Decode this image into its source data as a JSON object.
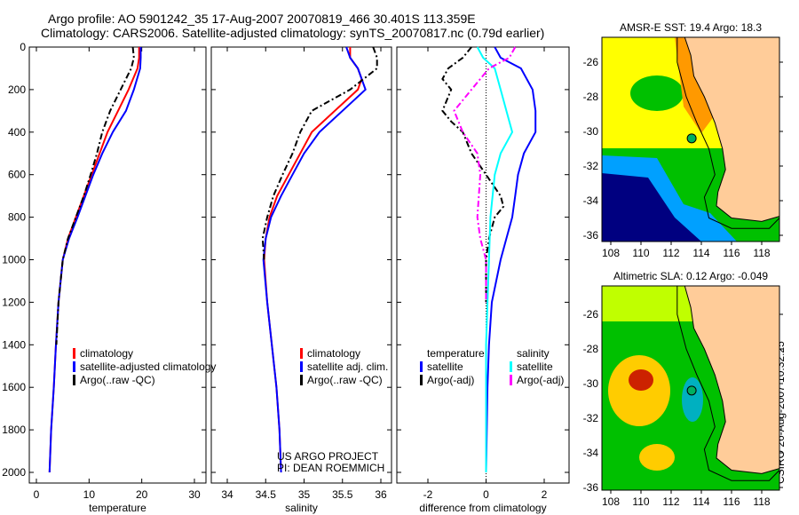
{
  "title_line1": "Argo profile: AO 5901242_35 17-Aug-2007 20070819_466 30.401S 113.359E",
  "title_line2": "Climatology: CARS2006. Satellite-adjusted climatology: synTS_20070817.nc (0.79d earlier)",
  "side_label": "CSIRO 26-Aug-2007 10:32:25",
  "chart_data": [
    {
      "type": "line",
      "xlabel": "temperature",
      "ylabel": "depth",
      "xlim": [
        -1,
        31
      ],
      "ylim": [
        2000,
        0
      ],
      "xticks": [
        0,
        10,
        20,
        30
      ],
      "yticks": [
        0,
        200,
        400,
        600,
        800,
        1000,
        1200,
        1400,
        1600,
        1800,
        2000
      ],
      "legend": [
        "climatology",
        "satellite-adjusted climatology",
        "Argo(..raw -QC)"
      ],
      "series": [
        {
          "name": "climatology",
          "color": "#ff0000",
          "dash": false,
          "depth": [
            0,
            50,
            100,
            200,
            300,
            400,
            500,
            600,
            700,
            800,
            900,
            1000,
            1200,
            1400,
            1600,
            1800,
            2000
          ],
          "values": [
            19.5,
            19.5,
            19.2,
            17.5,
            15.5,
            13.5,
            12,
            10.5,
            9,
            7.5,
            6,
            5,
            4.2,
            3.7,
            3.3,
            2.8,
            2.5
          ]
        },
        {
          "name": "satellite-adjusted climatology",
          "color": "#0000ff",
          "dash": false,
          "depth": [
            0,
            50,
            100,
            200,
            300,
            400,
            500,
            600,
            700,
            800,
            900,
            1000,
            1200,
            1400,
            1600,
            1800,
            2000
          ],
          "values": [
            19.8,
            19.8,
            19.7,
            18.5,
            17,
            14.5,
            12.5,
            10.8,
            9.3,
            7.8,
            6.2,
            5,
            4.2,
            3.7,
            3.3,
            2.8,
            2.5
          ]
        },
        {
          "name": "Argo(..raw -QC)",
          "color": "#000000",
          "dash": true,
          "depth": [
            0,
            50,
            100,
            200,
            300,
            400,
            500,
            600,
            700,
            800,
            900,
            1000,
            1200,
            1400
          ],
          "values": [
            18.3,
            18.5,
            18,
            16,
            14,
            12.5,
            11.5,
            10.3,
            9,
            7.5,
            6,
            5,
            4.2,
            3.8
          ]
        }
      ]
    },
    {
      "type": "line",
      "xlabel": "salinity",
      "ylabel": "depth",
      "xlim": [
        33.8,
        36.1
      ],
      "ylim": [
        2000,
        0
      ],
      "xticks": [
        34,
        34.5,
        35,
        35.5,
        36
      ],
      "yticks": [],
      "legend": [
        "climatology",
        "satellite adj. clim.",
        "Argo(..raw -QC)"
      ],
      "annotation": [
        "US ARGO PROJECT",
        "PI: DEAN ROEMMICH"
      ],
      "series": [
        {
          "name": "climatology",
          "color": "#ff0000",
          "dash": false,
          "depth": [
            0,
            50,
            100,
            150,
            200,
            300,
            400,
            500,
            600,
            700,
            800,
            900,
            1000,
            1200,
            1400,
            1600,
            1800,
            2000
          ],
          "values": [
            35.6,
            35.6,
            35.7,
            35.75,
            35.7,
            35.4,
            35.1,
            34.95,
            34.8,
            34.65,
            34.55,
            34.5,
            34.48,
            34.52,
            34.58,
            34.64,
            34.68,
            34.7
          ]
        },
        {
          "name": "satellite adj. clim.",
          "color": "#0000ff",
          "dash": false,
          "depth": [
            0,
            50,
            100,
            200,
            300,
            400,
            500,
            600,
            700,
            800,
            900,
            1000,
            1200,
            1400,
            1600,
            1800,
            2000
          ],
          "values": [
            35.55,
            35.6,
            35.7,
            35.8,
            35.5,
            35.2,
            35.0,
            34.85,
            34.7,
            34.57,
            34.5,
            34.47,
            34.52,
            34.58,
            34.64,
            34.68,
            34.7
          ]
        },
        {
          "name": "Argo(..raw -QC)",
          "color": "#000000",
          "dash": true,
          "depth": [
            0,
            50,
            100,
            200,
            300,
            400,
            500,
            600,
            700,
            800,
            900,
            1000
          ],
          "values": [
            35.9,
            35.95,
            35.95,
            35.6,
            35.1,
            34.95,
            34.85,
            34.72,
            34.6,
            34.52,
            34.46,
            34.48
          ]
        }
      ]
    },
    {
      "type": "line",
      "xlabel": "difference from climatology",
      "ylabel": "depth",
      "xlim": [
        -3,
        3
      ],
      "ylim": [
        2000,
        0
      ],
      "xticks": [
        -2,
        0,
        2
      ],
      "yticks": [],
      "legend_headers": [
        "temperature",
        "salinity"
      ],
      "legend": [
        "satellite",
        "Argo(-adj)",
        "satellite",
        "Argo(-adj)"
      ],
      "series": [
        {
          "name": "temperature satellite",
          "color": "#0000ff",
          "dash": false,
          "depth": [
            0,
            50,
            100,
            200,
            300,
            400,
            500,
            600,
            700,
            800,
            900,
            1000,
            1200,
            1400,
            1600,
            2000
          ],
          "values": [
            0.3,
            0.5,
            1.2,
            1.6,
            1.7,
            1.7,
            1.3,
            1.1,
            1.0,
            0.9,
            0.7,
            0.5,
            0.2,
            0.1,
            0.05,
            0
          ]
        },
        {
          "name": "temperature Argo(-adj)",
          "color": "#000000",
          "dash": true,
          "depth": [
            0,
            50,
            100,
            150,
            200,
            300,
            350,
            400,
            500,
            600,
            700,
            750,
            800,
            900,
            1000,
            1200
          ],
          "values": [
            -0.5,
            -0.8,
            -1.3,
            -1.5,
            -1.2,
            -1.5,
            -1.2,
            -0.8,
            -0.5,
            0,
            0.5,
            0.6,
            0.3,
            0.1,
            0,
            0
          ]
        },
        {
          "name": "salinity satellite",
          "color": "#00ffff",
          "dash": false,
          "depth": [
            0,
            50,
            100,
            200,
            300,
            400,
            500,
            600,
            800,
            1000,
            1400,
            2000
          ],
          "values": [
            -0.3,
            -0.1,
            0.3,
            0.5,
            0.7,
            0.9,
            0.5,
            0.3,
            0.15,
            0.1,
            0,
            0
          ]
        },
        {
          "name": "salinity Argo(-adj)",
          "color": "#ff00ff",
          "dash": true,
          "depth": [
            0,
            50,
            100,
            200,
            300,
            400,
            500,
            600,
            800,
            900,
            1000,
            1200
          ],
          "values": [
            1.0,
            0.8,
            0.1,
            -0.5,
            -1.1,
            -0.8,
            -0.3,
            -0.2,
            -0.3,
            -0.2,
            0,
            0
          ]
        }
      ]
    }
  ],
  "maps": [
    {
      "title": "AMSR-E SST: 19.4 Argo: 18.3",
      "xticks": [
        "108",
        "110",
        "112",
        "114",
        "116",
        "118"
      ],
      "yticks": [
        "-26",
        "-28",
        "-30",
        "-32",
        "-34",
        "-36"
      ],
      "marker": [
        113.359,
        -30.401
      ],
      "colors": {
        "a": "#ffff00",
        "b": "#00c000",
        "c": "#00a0ff",
        "d": "#000080",
        "e": "#ff9900",
        "land": "#ffcc99"
      }
    },
    {
      "title": "Altimetric SLA: 0.12 Argo: -0.049",
      "xticks": [
        "108",
        "110",
        "112",
        "114",
        "116",
        "118"
      ],
      "yticks": [
        "-26",
        "-28",
        "-30",
        "-32",
        "-34",
        "-36"
      ],
      "marker": [
        113.359,
        -30.401
      ],
      "colors": {
        "a": "#c0ff00",
        "b": "#00c000",
        "c": "#00b0c0",
        "d": "#cc2200",
        "e": "#ffcc00",
        "land": "#ffcc99"
      }
    }
  ]
}
